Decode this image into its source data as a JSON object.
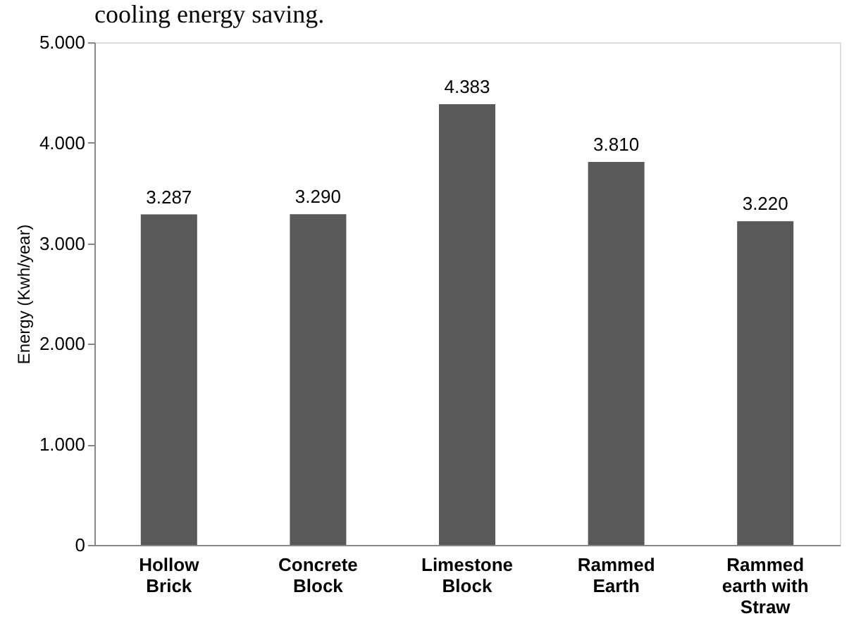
{
  "chart_data": {
    "type": "bar",
    "annotations": [
      "cooling energy saving."
    ],
    "ylabel": "Energy (Kwh/year)",
    "categories": [
      "Hollow\nBrick",
      "Concrete\nBlock",
      "Limestone\nBlock",
      "Rammed\nEarth",
      "Rammed\nearth with\nStraw"
    ],
    "values": [
      3287,
      3290,
      4383,
      3810,
      3220
    ],
    "value_labels": [
      "3.287",
      "3.290",
      "4.383",
      "3.810",
      "3.220"
    ],
    "color": "#595959",
    "ylim": [
      0,
      5000
    ],
    "yticks": [
      {
        "value": 0,
        "label": "0"
      },
      {
        "value": 1000,
        "label": "1.000"
      },
      {
        "value": 2000,
        "label": "2.000"
      },
      {
        "value": 3000,
        "label": "3.000"
      },
      {
        "value": 4000,
        "label": "4.000"
      },
      {
        "value": 5000,
        "label": "5.000"
      }
    ],
    "grid": false
  }
}
